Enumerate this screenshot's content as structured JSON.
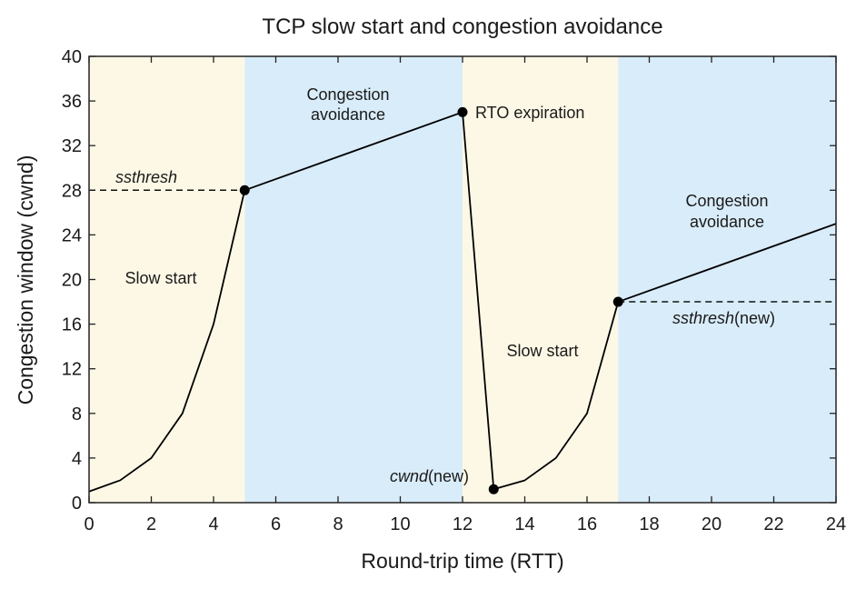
{
  "chart_data": {
    "type": "line",
    "title": "TCP slow start and congestion avoidance",
    "xlabel": "Round-trip time (RTT)",
    "ylabel": "Congestion window (cwnd)",
    "xlim": [
      0,
      24
    ],
    "ylim": [
      0,
      40
    ],
    "xticks": [
      0,
      2,
      4,
      6,
      8,
      10,
      12,
      14,
      16,
      18,
      20,
      22,
      24
    ],
    "yticks": [
      0,
      4,
      8,
      12,
      16,
      20,
      24,
      28,
      32,
      36,
      40
    ],
    "grid": false,
    "series": [
      {
        "x": [
          0,
          1,
          2,
          3,
          4,
          5,
          12,
          13,
          14,
          15,
          16,
          17,
          24
        ],
        "y": [
          1,
          2,
          4,
          8,
          16,
          28,
          35,
          1.2,
          2,
          4,
          8,
          18,
          25
        ],
        "color": "#000000"
      }
    ],
    "markers": [
      {
        "x": 5,
        "y": 28
      },
      {
        "x": 12,
        "y": 35
      },
      {
        "x": 13,
        "y": 1.2
      },
      {
        "x": 17,
        "y": 18
      }
    ],
    "threshold_lines": [
      {
        "y": 28,
        "x_from": 0,
        "x_to": 5
      },
      {
        "y": 18,
        "x_from": 17,
        "x_to": 24
      }
    ],
    "regions": [
      {
        "x_from": 0,
        "x_to": 5,
        "phase": "slow-start",
        "color": "#fdf8e6"
      },
      {
        "x_from": 5,
        "x_to": 12,
        "phase": "congestion-avoidance",
        "color": "#d9ecf9"
      },
      {
        "x_from": 12,
        "x_to": 17,
        "phase": "slow-start",
        "color": "#fdf8e6"
      },
      {
        "x_from": 17,
        "x_to": 24,
        "phase": "congestion-avoidance",
        "color": "#d9ecf9"
      }
    ],
    "annotations": {
      "slow_start_1": "Slow start",
      "cong_avoid_1_line1": "Congestion",
      "cong_avoid_1_line2": "avoidance",
      "ssthresh": "ssthresh",
      "rto": "RTO expiration",
      "slow_start_2": "Slow start",
      "cwnd_new_italic": "cwnd",
      "cwnd_new_suffix": "(new)",
      "cong_avoid_2_line1": "Congestion",
      "cong_avoid_2_line2": "avoidance",
      "ssthresh_new_italic": "ssthresh",
      "ssthresh_new_suffix": "(new)"
    }
  }
}
